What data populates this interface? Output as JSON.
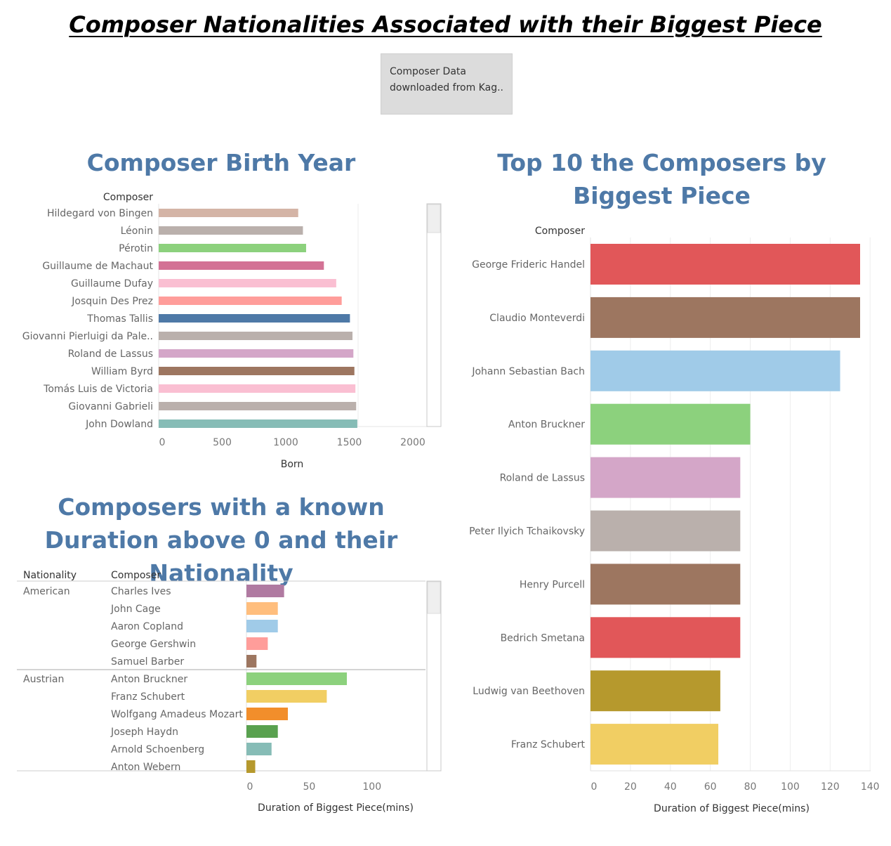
{
  "title": "Composer Nationalities Associated with their Biggest Piece",
  "source_note": "Composer Data downloaded from Kag..",
  "colors": {
    "title_blue": "#4e79a7",
    "scrollbar_border": "#c8c8c8",
    "gridline": "#eeeeee"
  },
  "chart_data": [
    {
      "id": "birth_year",
      "type": "bar",
      "orientation": "horizontal",
      "title": "Composer Birth Year",
      "row_header": "Composer",
      "xlabel": "Born",
      "xlim": [
        0,
        2200
      ],
      "xticks": [
        0,
        500,
        1000,
        1500,
        2000
      ],
      "categories": [
        "Hildegard von Bingen",
        "Léonin",
        "Pérotin",
        "Guillaume de Machaut",
        "Guillaume Dufay",
        "Josquin Des Prez",
        "Thomas Tallis",
        "Giovanni Pierluigi da Pale..",
        "Roland de Lassus",
        "William Byrd",
        "Tomás Luis de Victoria",
        "Giovanni Gabrieli",
        "John Dowland"
      ],
      "values": [
        1098,
        1135,
        1160,
        1300,
        1397,
        1440,
        1505,
        1525,
        1532,
        1540,
        1548,
        1554,
        1563
      ],
      "colors": [
        "#d4b4a6",
        "#bab0ac",
        "#8cd17d",
        "#d37295",
        "#fabfd2",
        "#ff9d9a",
        "#4e79a7",
        "#bab0ac",
        "#d4a6c8",
        "#9d7660",
        "#fabfd2",
        "#bab0ac",
        "#86bcb6"
      ]
    },
    {
      "id": "top10",
      "type": "bar",
      "orientation": "horizontal",
      "title": "Top 10 the Composers by Biggest Piece",
      "row_header": "Composer",
      "xlabel": "Duration of Biggest Piece(mins)",
      "xlim": [
        0,
        140
      ],
      "xticks": [
        0,
        20,
        40,
        60,
        80,
        100,
        120,
        140
      ],
      "categories": [
        "George Frideric Handel",
        "Claudio Monteverdi",
        "Johann Sebastian Bach",
        "Anton Bruckner",
        "Roland de Lassus",
        "Peter Ilyich Tchaikovsky",
        "Henry Purcell",
        "Bedrich Smetana",
        "Ludwig van Beethoven",
        "Franz Schubert"
      ],
      "values": [
        135,
        135,
        125,
        80,
        75,
        75,
        75,
        75,
        65,
        64
      ],
      "colors": [
        "#e15759",
        "#9d7660",
        "#a0cbe8",
        "#8cd17d",
        "#d4a6c8",
        "#bab0ac",
        "#9d7660",
        "#e15759",
        "#b6992d",
        "#f1ce63"
      ]
    },
    {
      "id": "nationality",
      "type": "bar",
      "orientation": "horizontal",
      "title": "Composers with a known Duration above 0 and their Nationality",
      "group_header": "Nationality",
      "row_header": "Composer",
      "xlabel": "Duration of Biggest Piece(mins)",
      "xlim": [
        0,
        145
      ],
      "xticks": [
        0,
        50,
        100
      ],
      "groups": [
        {
          "name": "American",
          "items": [
            {
              "name": "Charles Ives",
              "value": 30,
              "color": "#b07aa1"
            },
            {
              "name": "John Cage",
              "value": 25,
              "color": "#ffbe7d"
            },
            {
              "name": "Aaron Copland",
              "value": 25,
              "color": "#a0cbe8"
            },
            {
              "name": "George Gershwin",
              "value": 17,
              "color": "#ff9d9a"
            },
            {
              "name": "Samuel Barber",
              "value": 8,
              "color": "#9d7660"
            }
          ]
        },
        {
          "name": "Austrian",
          "items": [
            {
              "name": "Anton Bruckner",
              "value": 80,
              "color": "#8cd17d"
            },
            {
              "name": "Franz Schubert",
              "value": 64,
              "color": "#f1ce63"
            },
            {
              "name": "Wolfgang Amadeus Mozart",
              "value": 33,
              "color": "#f28e2b"
            },
            {
              "name": "Joseph Haydn",
              "value": 25,
              "color": "#59a14f"
            },
            {
              "name": "Arnold Schoenberg",
              "value": 20,
              "color": "#86bcb6"
            },
            {
              "name": "Anton Webern",
              "value": 7,
              "color": "#b6992d"
            }
          ]
        }
      ]
    }
  ]
}
